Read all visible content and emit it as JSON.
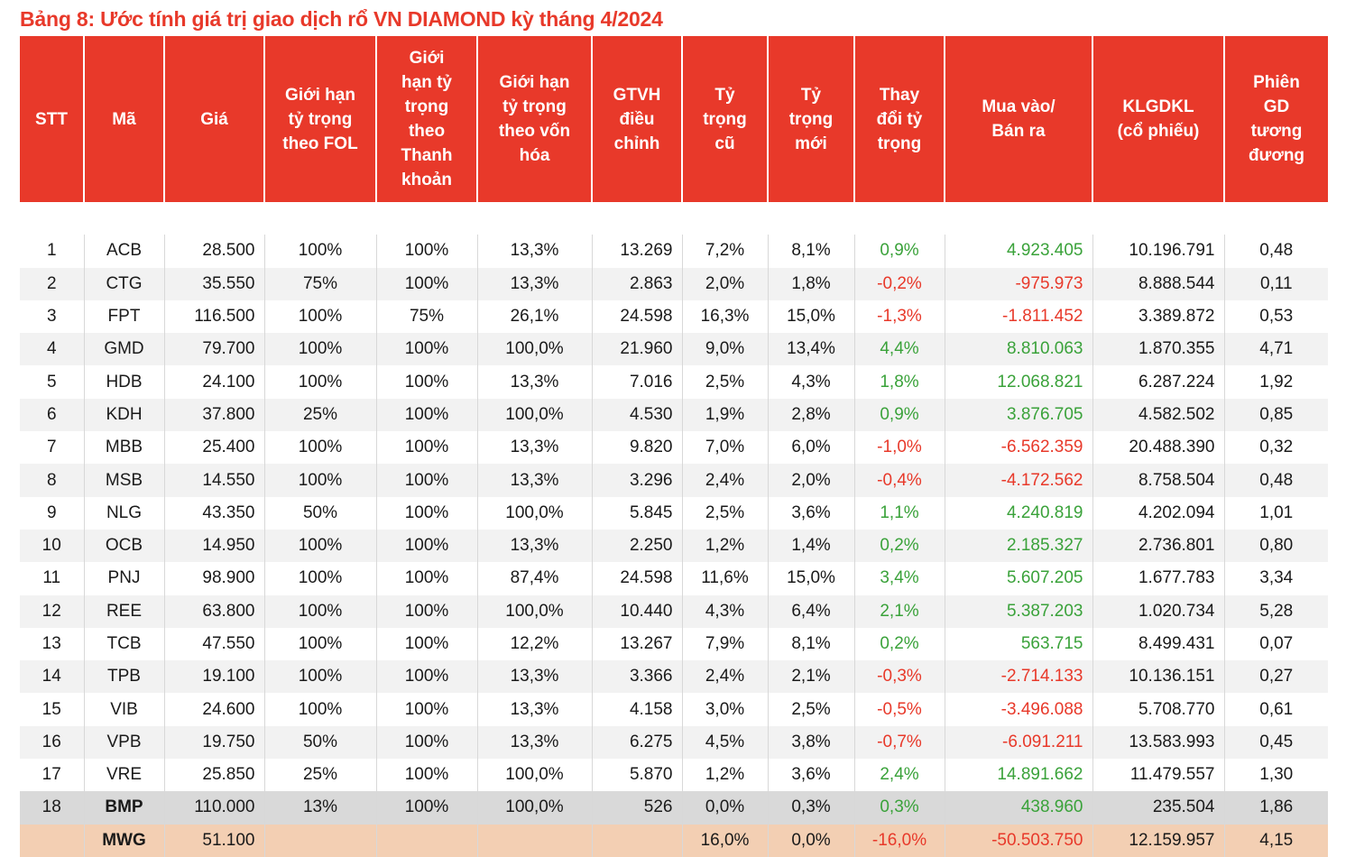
{
  "title": "Bảng 8: Ước tính giá trị giao dịch rổ VN DIAMOND kỳ tháng 4/2024",
  "headers": [
    "STT",
    "Mã",
    "Giá",
    "Giới hạn\ntỷ trọng\ntheo FOL",
    "Giới\nhạn tỷ\ntrọng\ntheo\nThanh\nkhoản",
    "Giới hạn\ntỷ trọng\ntheo vốn\nhóa",
    "GTVH\nđiều\nchỉnh",
    "Tỷ\ntrọng\ncũ",
    "Tỷ\ntrọng\nmới",
    "Thay\nđổi tỷ\ntrọng",
    "Mua vào/\nBán ra",
    "KLGDKL\n(cổ phiếu)",
    "Phiên\nGD\ntương\nđương"
  ],
  "rows": [
    [
      "1",
      "ACB",
      "28.500",
      "100%",
      "100%",
      "13,3%",
      "13.269",
      "7,2%",
      "8,1%",
      "0,9%",
      "4.923.405",
      "10.196.791",
      "0,48"
    ],
    [
      "2",
      "CTG",
      "35.550",
      "75%",
      "100%",
      "13,3%",
      "2.863",
      "2,0%",
      "1,8%",
      "-0,2%",
      "-975.973",
      "8.888.544",
      "0,11"
    ],
    [
      "3",
      "FPT",
      "116.500",
      "100%",
      "75%",
      "26,1%",
      "24.598",
      "16,3%",
      "15,0%",
      "-1,3%",
      "-1.811.452",
      "3.389.872",
      "0,53"
    ],
    [
      "4",
      "GMD",
      "79.700",
      "100%",
      "100%",
      "100,0%",
      "21.960",
      "9,0%",
      "13,4%",
      "4,4%",
      "8.810.063",
      "1.870.355",
      "4,71"
    ],
    [
      "5",
      "HDB",
      "24.100",
      "100%",
      "100%",
      "13,3%",
      "7.016",
      "2,5%",
      "4,3%",
      "1,8%",
      "12.068.821",
      "6.287.224",
      "1,92"
    ],
    [
      "6",
      "KDH",
      "37.800",
      "25%",
      "100%",
      "100,0%",
      "4.530",
      "1,9%",
      "2,8%",
      "0,9%",
      "3.876.705",
      "4.582.502",
      "0,85"
    ],
    [
      "7",
      "MBB",
      "25.400",
      "100%",
      "100%",
      "13,3%",
      "9.820",
      "7,0%",
      "6,0%",
      "-1,0%",
      "-6.562.359",
      "20.488.390",
      "0,32"
    ],
    [
      "8",
      "MSB",
      "14.550",
      "100%",
      "100%",
      "13,3%",
      "3.296",
      "2,4%",
      "2,0%",
      "-0,4%",
      "-4.172.562",
      "8.758.504",
      "0,48"
    ],
    [
      "9",
      "NLG",
      "43.350",
      "50%",
      "100%",
      "100,0%",
      "5.845",
      "2,5%",
      "3,6%",
      "1,1%",
      "4.240.819",
      "4.202.094",
      "1,01"
    ],
    [
      "10",
      "OCB",
      "14.950",
      "100%",
      "100%",
      "13,3%",
      "2.250",
      "1,2%",
      "1,4%",
      "0,2%",
      "2.185.327",
      "2.736.801",
      "0,80"
    ],
    [
      "11",
      "PNJ",
      "98.900",
      "100%",
      "100%",
      "87,4%",
      "24.598",
      "11,6%",
      "15,0%",
      "3,4%",
      "5.607.205",
      "1.677.783",
      "3,34"
    ],
    [
      "12",
      "REE",
      "63.800",
      "100%",
      "100%",
      "100,0%",
      "10.440",
      "4,3%",
      "6,4%",
      "2,1%",
      "5.387.203",
      "1.020.734",
      "5,28"
    ],
    [
      "13",
      "TCB",
      "47.550",
      "100%",
      "100%",
      "12,2%",
      "13.267",
      "7,9%",
      "8,1%",
      "0,2%",
      "563.715",
      "8.499.431",
      "0,07"
    ],
    [
      "14",
      "TPB",
      "19.100",
      "100%",
      "100%",
      "13,3%",
      "3.366",
      "2,4%",
      "2,1%",
      "-0,3%",
      "-2.714.133",
      "10.136.151",
      "0,27"
    ],
    [
      "15",
      "VIB",
      "24.600",
      "100%",
      "100%",
      "13,3%",
      "4.158",
      "3,0%",
      "2,5%",
      "-0,5%",
      "-3.496.088",
      "5.708.770",
      "0,61"
    ],
    [
      "16",
      "VPB",
      "19.750",
      "50%",
      "100%",
      "13,3%",
      "6.275",
      "4,5%",
      "3,8%",
      "-0,7%",
      "-6.091.211",
      "13.583.993",
      "0,45"
    ],
    [
      "17",
      "VRE",
      "25.850",
      "25%",
      "100%",
      "100,0%",
      "5.870",
      "1,2%",
      "3,6%",
      "2,4%",
      "14.891.662",
      "11.479.557",
      "1,30"
    ],
    [
      "18",
      "BMP",
      "110.000",
      "13%",
      "100%",
      "100,0%",
      "526",
      "0,0%",
      "0,3%",
      "0,3%",
      "438.960",
      "235.504",
      "1,86"
    ],
    [
      "",
      "MWG",
      "51.100",
      "",
      "",
      "",
      "",
      "16,0%",
      "0,0%",
      "-16,0%",
      "-50.503.750",
      "12.159.957",
      "4,15"
    ]
  ],
  "colors": {
    "header_bg": "#e8392a",
    "positive": "#3aa23a",
    "negative": "#e8392a",
    "added_row": "#d9d9d9",
    "removed_row": "#f3cfb3"
  }
}
